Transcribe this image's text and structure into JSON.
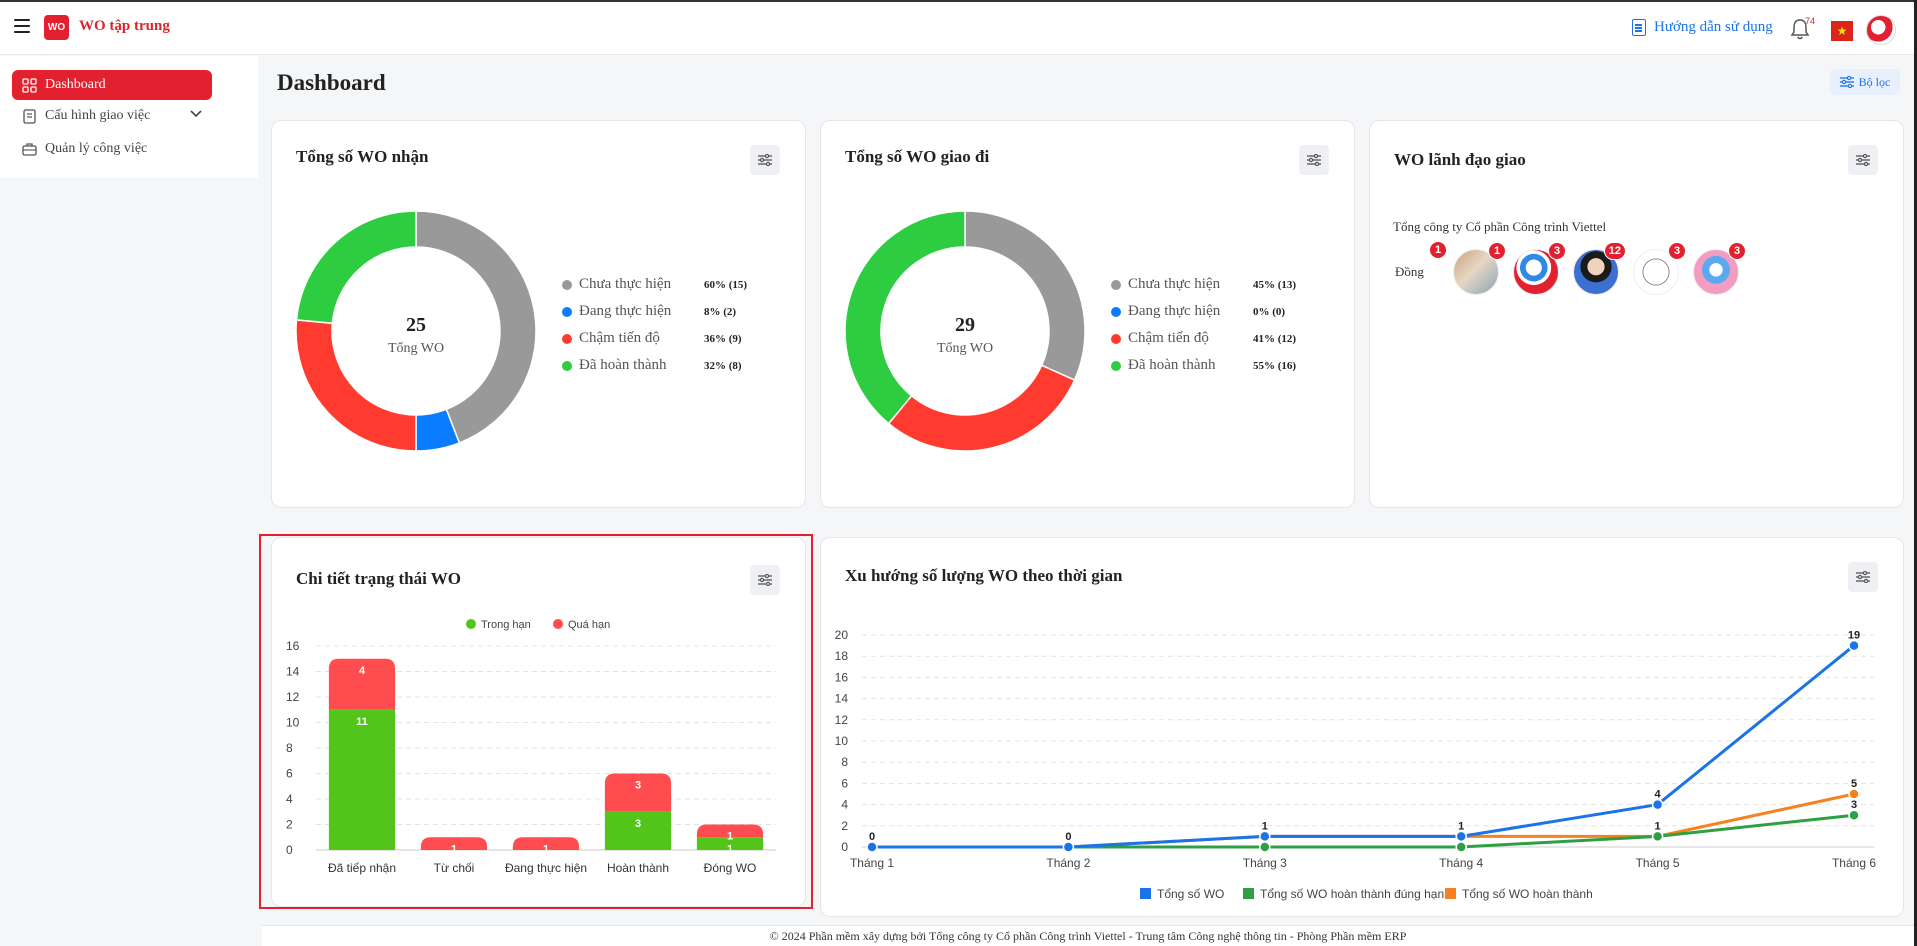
{
  "topbar": {
    "app_title": "WO tập trung",
    "logo_text": "WO",
    "help_label": "Hướng dẫn sử dụng",
    "notification_count": "74",
    "flag_star": "★"
  },
  "sidebar": {
    "items": [
      {
        "label": "Dashboard"
      },
      {
        "label": "Cấu hình giao việc"
      },
      {
        "label": "Quản lý công việc"
      }
    ]
  },
  "page": {
    "title": "Dashboard",
    "filter_label": "Bộ lọc"
  },
  "received": {
    "title": "Tổng số WO nhận",
    "total": "25",
    "total_label": "Tổng WO",
    "legend": [
      {
        "name": "Chưa thực hiện",
        "value": "60% (15)",
        "color": "#999999",
        "count": 15
      },
      {
        "name": "Đang thực hiện",
        "value": "8% (2)",
        "color": "#0a7cff",
        "count": 2
      },
      {
        "name": "Chậm tiến độ",
        "value": "36% (9)",
        "color": "#ff3b30",
        "count": 9
      },
      {
        "name": "Đã hoàn thành",
        "value": "32% (8)",
        "color": "#2ecc40",
        "count": 8
      }
    ]
  },
  "sent": {
    "title": "Tổng số WO giao đi",
    "total": "29",
    "total_label": "Tổng WO",
    "legend": [
      {
        "name": "Chưa thực hiện",
        "value": "45% (13)",
        "color": "#999999",
        "count": 13
      },
      {
        "name": "Đang thực hiện",
        "value": "0% (0)",
        "color": "#0a7cff",
        "count": 0
      },
      {
        "name": "Chậm tiến độ",
        "value": "41% (12)",
        "color": "#ff3b30",
        "count": 12
      },
      {
        "name": "Đã hoàn thành",
        "value": "55% (16)",
        "color": "#2ecc40",
        "count": 16
      }
    ]
  },
  "leaders": {
    "title": "WO lãnh đạo giao",
    "org": "Tổng công ty Cổ phần Công trình Viettel",
    "avatars": [
      {
        "badge": "1",
        "alt": "Đồng"
      },
      {
        "badge": "1",
        "alt": ""
      },
      {
        "badge": "3",
        "alt": ""
      },
      {
        "badge": "12",
        "alt": ""
      },
      {
        "badge": "3",
        "alt": ""
      },
      {
        "badge": "3",
        "alt": ""
      }
    ]
  },
  "status_detail": {
    "title": "Chi tiết trạng thái WO"
  },
  "trend": {
    "title": "Xu hướng số lượng WO theo thời gian"
  },
  "chart_data": [
    {
      "type": "pie",
      "title": "Tổng số WO nhận",
      "categories": [
        "Chưa thực hiện",
        "Đang thực hiện",
        "Chậm tiến độ",
        "Đã hoàn thành"
      ],
      "values": [
        15,
        2,
        9,
        8
      ],
      "labels": [
        "60% (15)",
        "8% (2)",
        "36% (9)",
        "32% (8)"
      ],
      "colors": [
        "#999999",
        "#0a7cff",
        "#ff3b30",
        "#2ecc40"
      ],
      "legend": "right"
    },
    {
      "type": "pie",
      "title": "Tổng số WO giao đi",
      "categories": [
        "Chưa thực hiện",
        "Đang thực hiện",
        "Chậm tiến độ",
        "Đã hoàn thành"
      ],
      "values": [
        13,
        0,
        12,
        16
      ],
      "labels": [
        "45% (13)",
        "0% (0)",
        "41% (12)",
        "55% (16)"
      ],
      "colors": [
        "#999999",
        "#0a7cff",
        "#ff3b30",
        "#2ecc40"
      ],
      "legend": "right"
    },
    {
      "type": "bar",
      "stacked": true,
      "title": "Chi tiết trạng thái WO",
      "categories": [
        "Đã tiếp nhận",
        "Từ chối",
        "Đang thực hiện",
        "Hoàn thành",
        "Đóng WO"
      ],
      "series": [
        {
          "name": "Trong hạn",
          "color": "#52c41a",
          "values": [
            11,
            0,
            0,
            3,
            1
          ]
        },
        {
          "name": "Quá hạn",
          "color": "#ff4d4f",
          "values": [
            4,
            1,
            1,
            3,
            1
          ]
        }
      ],
      "ylim": [
        0,
        16
      ],
      "yticks": [
        0,
        2,
        4,
        6,
        8,
        10,
        12,
        14,
        16
      ],
      "grid": true,
      "legend": "top"
    },
    {
      "type": "line",
      "title": "Xu hướng số lượng WO theo thời gian",
      "x": [
        "Tháng 1",
        "Tháng 2",
        "Tháng 3",
        "Tháng 4",
        "Tháng 5",
        "Tháng 6"
      ],
      "series": [
        {
          "name": "Tổng số WO",
          "color": "#1a73e8",
          "values": [
            0,
            0,
            1,
            1,
            4,
            19
          ]
        },
        {
          "name": "Tổng số WO hoàn thành đúng hạn",
          "color": "#2ea043",
          "values": [
            0,
            0,
            0,
            0,
            1,
            3
          ]
        },
        {
          "name": "Tổng số WO hoàn thành",
          "color": "#f5821f",
          "values": [
            0,
            0,
            1,
            1,
            1,
            5
          ]
        }
      ],
      "point_labels": [
        "0",
        "0",
        "1",
        "1",
        "4",
        "19"
      ],
      "point_labels_completed": [
        "",
        "",
        "",
        "",
        "1",
        "5"
      ],
      "point_labels_ontime": [
        "",
        "",
        "",
        "",
        "",
        "3"
      ],
      "ylim": [
        0,
        20
      ],
      "yticks": [
        0,
        2,
        4,
        6,
        8,
        10,
        12,
        14,
        16,
        18,
        20
      ],
      "grid": true,
      "legend": "bottom"
    }
  ],
  "footer": {
    "text": "© 2024 Phần mềm xây dựng bởi Tổng công ty Cổ phần Công trình Viettel - Trung tâm Công nghệ thông tin - Phòng Phần mềm ERP"
  }
}
